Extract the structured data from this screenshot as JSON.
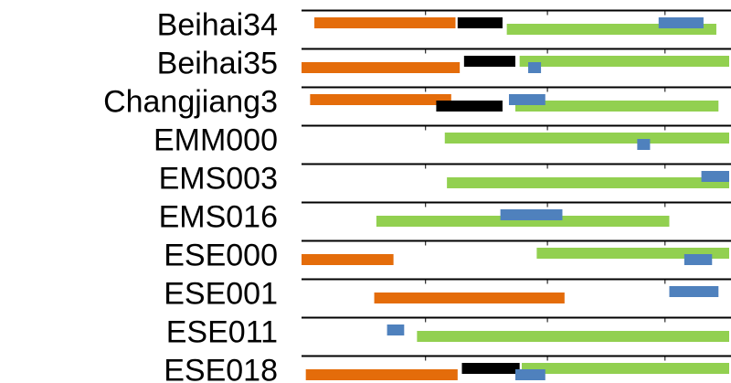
{
  "chart_data": {
    "type": "bar",
    "subtype": "range-track",
    "title": "",
    "xlabel": "",
    "ylabel": "",
    "grid": false,
    "legend": "none",
    "colors": {
      "orange": "#E46C0A",
      "black": "#000000",
      "green": "#92D050",
      "blue": "#4F81BD",
      "axis": "#000000",
      "tick": "#000000"
    },
    "rows": [
      {
        "label": "Beihai34",
        "segments": [
          {
            "color": "orange",
            "start": 0.03,
            "end": 0.36,
            "level": 0
          },
          {
            "color": "black",
            "start": 0.365,
            "end": 0.47,
            "level": 0
          },
          {
            "color": "green",
            "start": 0.48,
            "end": 0.97,
            "level": 1
          },
          {
            "color": "blue",
            "start": 0.835,
            "end": 0.94,
            "level": 0
          }
        ]
      },
      {
        "label": "Beihai35",
        "segments": [
          {
            "color": "orange",
            "start": 0.0,
            "end": 0.37,
            "level": 1
          },
          {
            "color": "black",
            "start": 0.38,
            "end": 0.5,
            "level": 0
          },
          {
            "color": "green",
            "start": 0.51,
            "end": 1.0,
            "level": 0
          },
          {
            "color": "blue",
            "start": 0.53,
            "end": 0.56,
            "level": 1
          }
        ]
      },
      {
        "label": "Changjiang3",
        "segments": [
          {
            "color": "orange",
            "start": 0.02,
            "end": 0.35,
            "level": 0
          },
          {
            "color": "black",
            "start": 0.315,
            "end": 0.47,
            "level": 1
          },
          {
            "color": "green",
            "start": 0.5,
            "end": 0.975,
            "level": 1
          },
          {
            "color": "blue",
            "start": 0.485,
            "end": 0.57,
            "level": 0
          }
        ]
      },
      {
        "label": "EMM000",
        "segments": [
          {
            "color": "green",
            "start": 0.335,
            "end": 1.0,
            "level": 0
          },
          {
            "color": "blue",
            "start": 0.785,
            "end": 0.815,
            "level": 1
          }
        ]
      },
      {
        "label": "EMS003",
        "segments": [
          {
            "color": "green",
            "start": 0.34,
            "end": 1.0,
            "level": 1
          },
          {
            "color": "blue",
            "start": 0.935,
            "end": 1.0,
            "level": 0
          }
        ]
      },
      {
        "label": "EMS016",
        "segments": [
          {
            "color": "green",
            "start": 0.175,
            "end": 0.86,
            "level": 1
          },
          {
            "color": "blue",
            "start": 0.465,
            "end": 0.61,
            "level": 0
          }
        ]
      },
      {
        "label": "ESE000",
        "segments": [
          {
            "color": "orange",
            "start": 0.0,
            "end": 0.215,
            "level": 1
          },
          {
            "color": "green",
            "start": 0.55,
            "end": 1.0,
            "level": 0
          },
          {
            "color": "blue",
            "start": 0.895,
            "end": 0.96,
            "level": 1
          }
        ]
      },
      {
        "label": "ESE001",
        "segments": [
          {
            "color": "orange",
            "start": 0.17,
            "end": 0.615,
            "level": 1
          },
          {
            "color": "blue",
            "start": 0.86,
            "end": 0.975,
            "level": 0
          }
        ]
      },
      {
        "label": "ESE011",
        "segments": [
          {
            "color": "green",
            "start": 0.27,
            "end": 1.0,
            "level": 1
          },
          {
            "color": "blue",
            "start": 0.2,
            "end": 0.24,
            "level": 0
          }
        ]
      },
      {
        "label": "ESE018",
        "segments": [
          {
            "color": "orange",
            "start": 0.01,
            "end": 0.365,
            "level": 1
          },
          {
            "color": "black",
            "start": 0.375,
            "end": 0.51,
            "level": 0
          },
          {
            "color": "green",
            "start": 0.515,
            "end": 1.0,
            "level": 0
          },
          {
            "color": "blue",
            "start": 0.5,
            "end": 0.57,
            "level": 1
          }
        ]
      }
    ]
  }
}
